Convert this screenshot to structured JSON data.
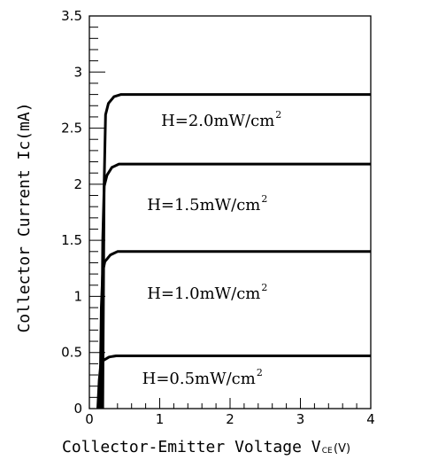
{
  "chart_data": {
    "type": "line",
    "xlabel_main": "Collector-Emitter Voltage V",
    "xlabel_sub": "CE",
    "xlabel_unit": "(V)",
    "ylabel": "Collector Current Ic(mA)",
    "xlim": [
      0,
      4
    ],
    "ylim": [
      0,
      3.5
    ],
    "x_major_ticks": [
      0,
      1,
      2,
      3,
      4
    ],
    "y_major_ticks": [
      0,
      0.5,
      1,
      1.5,
      2,
      2.5,
      3,
      3.5
    ],
    "x_tick_labels": [
      "0",
      "1",
      "2",
      "3",
      "4"
    ],
    "y_tick_labels": [
      "0",
      "0.5",
      "1",
      "1.5",
      "2",
      "2.5",
      "3",
      "3.5"
    ],
    "grid": false,
    "series": [
      {
        "name": "H=0.5mW/cm",
        "superscript": "2",
        "points": [
          [
            0.12,
            0.0
          ],
          [
            0.14,
            0.25
          ],
          [
            0.16,
            0.38
          ],
          [
            0.2,
            0.43
          ],
          [
            0.28,
            0.46
          ],
          [
            0.38,
            0.47
          ],
          [
            4.0,
            0.47
          ]
        ]
      },
      {
        "name": "H=1.0mW/cm",
        "superscript": "2",
        "points": [
          [
            0.15,
            0.0
          ],
          [
            0.17,
            0.9
          ],
          [
            0.19,
            1.22
          ],
          [
            0.22,
            1.31
          ],
          [
            0.3,
            1.37
          ],
          [
            0.4,
            1.4
          ],
          [
            4.0,
            1.4
          ]
        ]
      },
      {
        "name": "H=1.5mW/cm",
        "superscript": "2",
        "points": [
          [
            0.17,
            0.0
          ],
          [
            0.19,
            1.5
          ],
          [
            0.21,
            1.98
          ],
          [
            0.25,
            2.08
          ],
          [
            0.32,
            2.15
          ],
          [
            0.42,
            2.18
          ],
          [
            4.0,
            2.18
          ]
        ]
      },
      {
        "name": "H=2.0mW/cm",
        "superscript": "2",
        "points": [
          [
            0.19,
            0.0
          ],
          [
            0.21,
            2.0
          ],
          [
            0.23,
            2.62
          ],
          [
            0.27,
            2.72
          ],
          [
            0.35,
            2.78
          ],
          [
            0.45,
            2.8
          ],
          [
            4.0,
            2.8
          ]
        ]
      }
    ]
  }
}
